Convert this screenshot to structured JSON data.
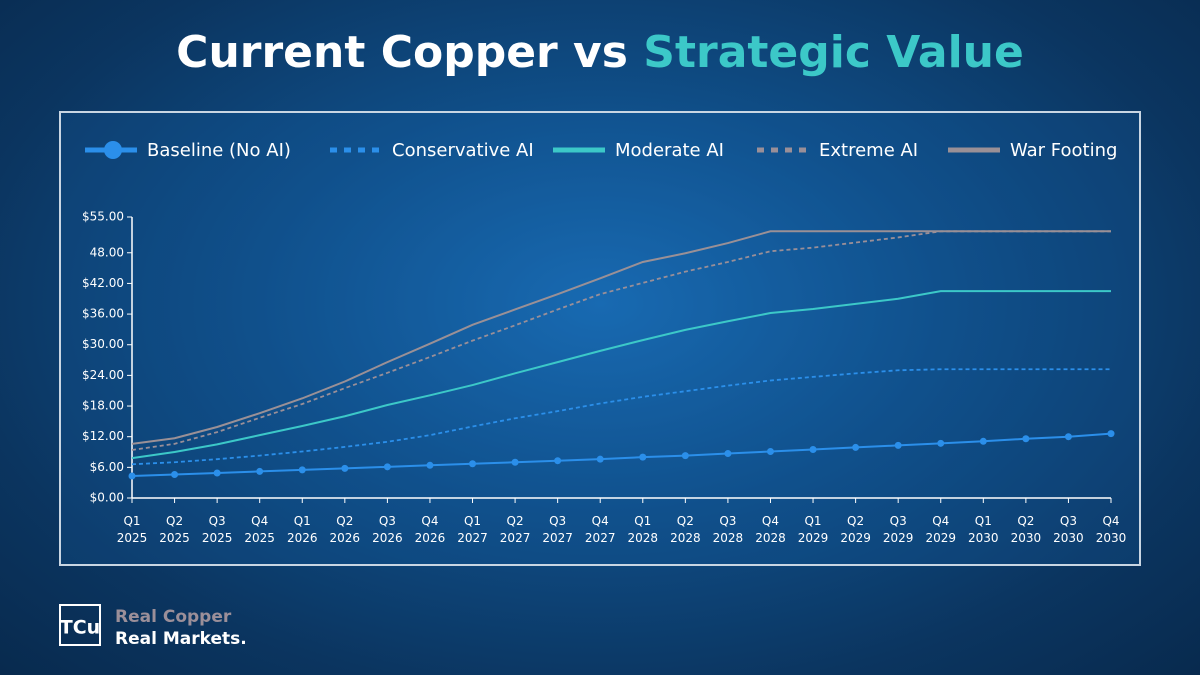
{
  "chart_data": {
    "type": "line",
    "title": "Current Copper vs",
    "title_highlight": "Strategic Value",
    "categories": [
      "Q1 2025",
      "Q2 2025",
      "Q3 2025",
      "Q4 2025",
      "Q1 2026",
      "Q2 2026",
      "Q3 2026",
      "Q4 2026",
      "Q1 2027",
      "Q2 2027",
      "Q3 2027",
      "Q4 2027",
      "Q1 2028",
      "Q2 2028",
      "Q3 2028",
      "Q4 2028",
      "Q1 2029",
      "Q2 2029",
      "Q3 2029",
      "Q4 2029",
      "Q1 2030",
      "Q2 2030",
      "Q3 2030",
      "Q4 2030"
    ],
    "series": [
      {
        "name": "Baseline (No AI)",
        "color": "#2b8fea",
        "style": "solid",
        "markers": true,
        "values": [
          4.3,
          4.6,
          4.9,
          5.2,
          5.5,
          5.8,
          6.1,
          6.4,
          6.7,
          7.0,
          7.3,
          7.6,
          8.0,
          8.3,
          8.7,
          9.1,
          9.5,
          9.9,
          10.3,
          10.7,
          11.1,
          11.6,
          12.0,
          12.6
        ]
      },
      {
        "name": "Conservative AI",
        "color": "#2b8fea",
        "style": "dashed",
        "markers": false,
        "values": [
          6.6,
          7.0,
          7.6,
          8.3,
          9.1,
          10.0,
          11.0,
          12.3,
          14.0,
          15.6,
          17.0,
          18.5,
          19.8,
          20.9,
          22.0,
          23.0,
          23.7,
          24.4,
          25.0,
          25.2,
          25.2,
          25.2,
          25.2,
          25.2
        ]
      },
      {
        "name": "Moderate AI",
        "color": "#3cc8c8",
        "style": "solid",
        "markers": false,
        "values": [
          7.8,
          9.0,
          10.5,
          12.3,
          14.1,
          16.0,
          18.2,
          20.1,
          22.1,
          24.4,
          26.6,
          28.8,
          30.9,
          32.9,
          34.6,
          36.2,
          37.0,
          38.0,
          39.0,
          40.5,
          40.5,
          40.5,
          40.5,
          40.5
        ]
      },
      {
        "name": "Extreme AI",
        "color": "#9a8f98",
        "style": "dashed",
        "markers": false,
        "values": [
          9.4,
          10.6,
          12.9,
          15.7,
          18.4,
          21.5,
          24.5,
          27.6,
          30.8,
          33.8,
          36.9,
          39.9,
          42.1,
          44.3,
          46.2,
          48.3,
          49.0,
          50.0,
          51.0,
          52.2,
          52.2,
          52.2,
          52.2,
          52.2
        ]
      },
      {
        "name": "War Footing",
        "color": "#9a9096",
        "style": "solid",
        "markers": false,
        "values": [
          10.6,
          11.7,
          13.9,
          16.6,
          19.5,
          22.8,
          26.6,
          30.2,
          33.9,
          36.9,
          39.9,
          43.0,
          46.2,
          47.9,
          49.9,
          52.2,
          52.2,
          52.2,
          52.2,
          52.2,
          52.2,
          52.2,
          52.2,
          52.2
        ]
      }
    ],
    "ylim": [
      0,
      55
    ],
    "yticks": [
      {
        "value": 55,
        "label": "$55.00"
      },
      {
        "value": 48,
        "label": "48.00"
      },
      {
        "value": 42,
        "label": "$42.00"
      },
      {
        "value": 36,
        "label": "$36.00"
      },
      {
        "value": 30,
        "label": "$30.00"
      },
      {
        "value": 24,
        "label": "$24.00"
      },
      {
        "value": 18,
        "label": "$18.00"
      },
      {
        "value": 12,
        "label": "$12.00"
      },
      {
        "value": 6,
        "label": "$6.00"
      },
      {
        "value": 0,
        "label": "$0.00"
      }
    ],
    "grid": false,
    "legend": "top"
  },
  "footer": {
    "logo": "TCu",
    "line1": "Real Copper",
    "line2": "Real Markets."
  }
}
